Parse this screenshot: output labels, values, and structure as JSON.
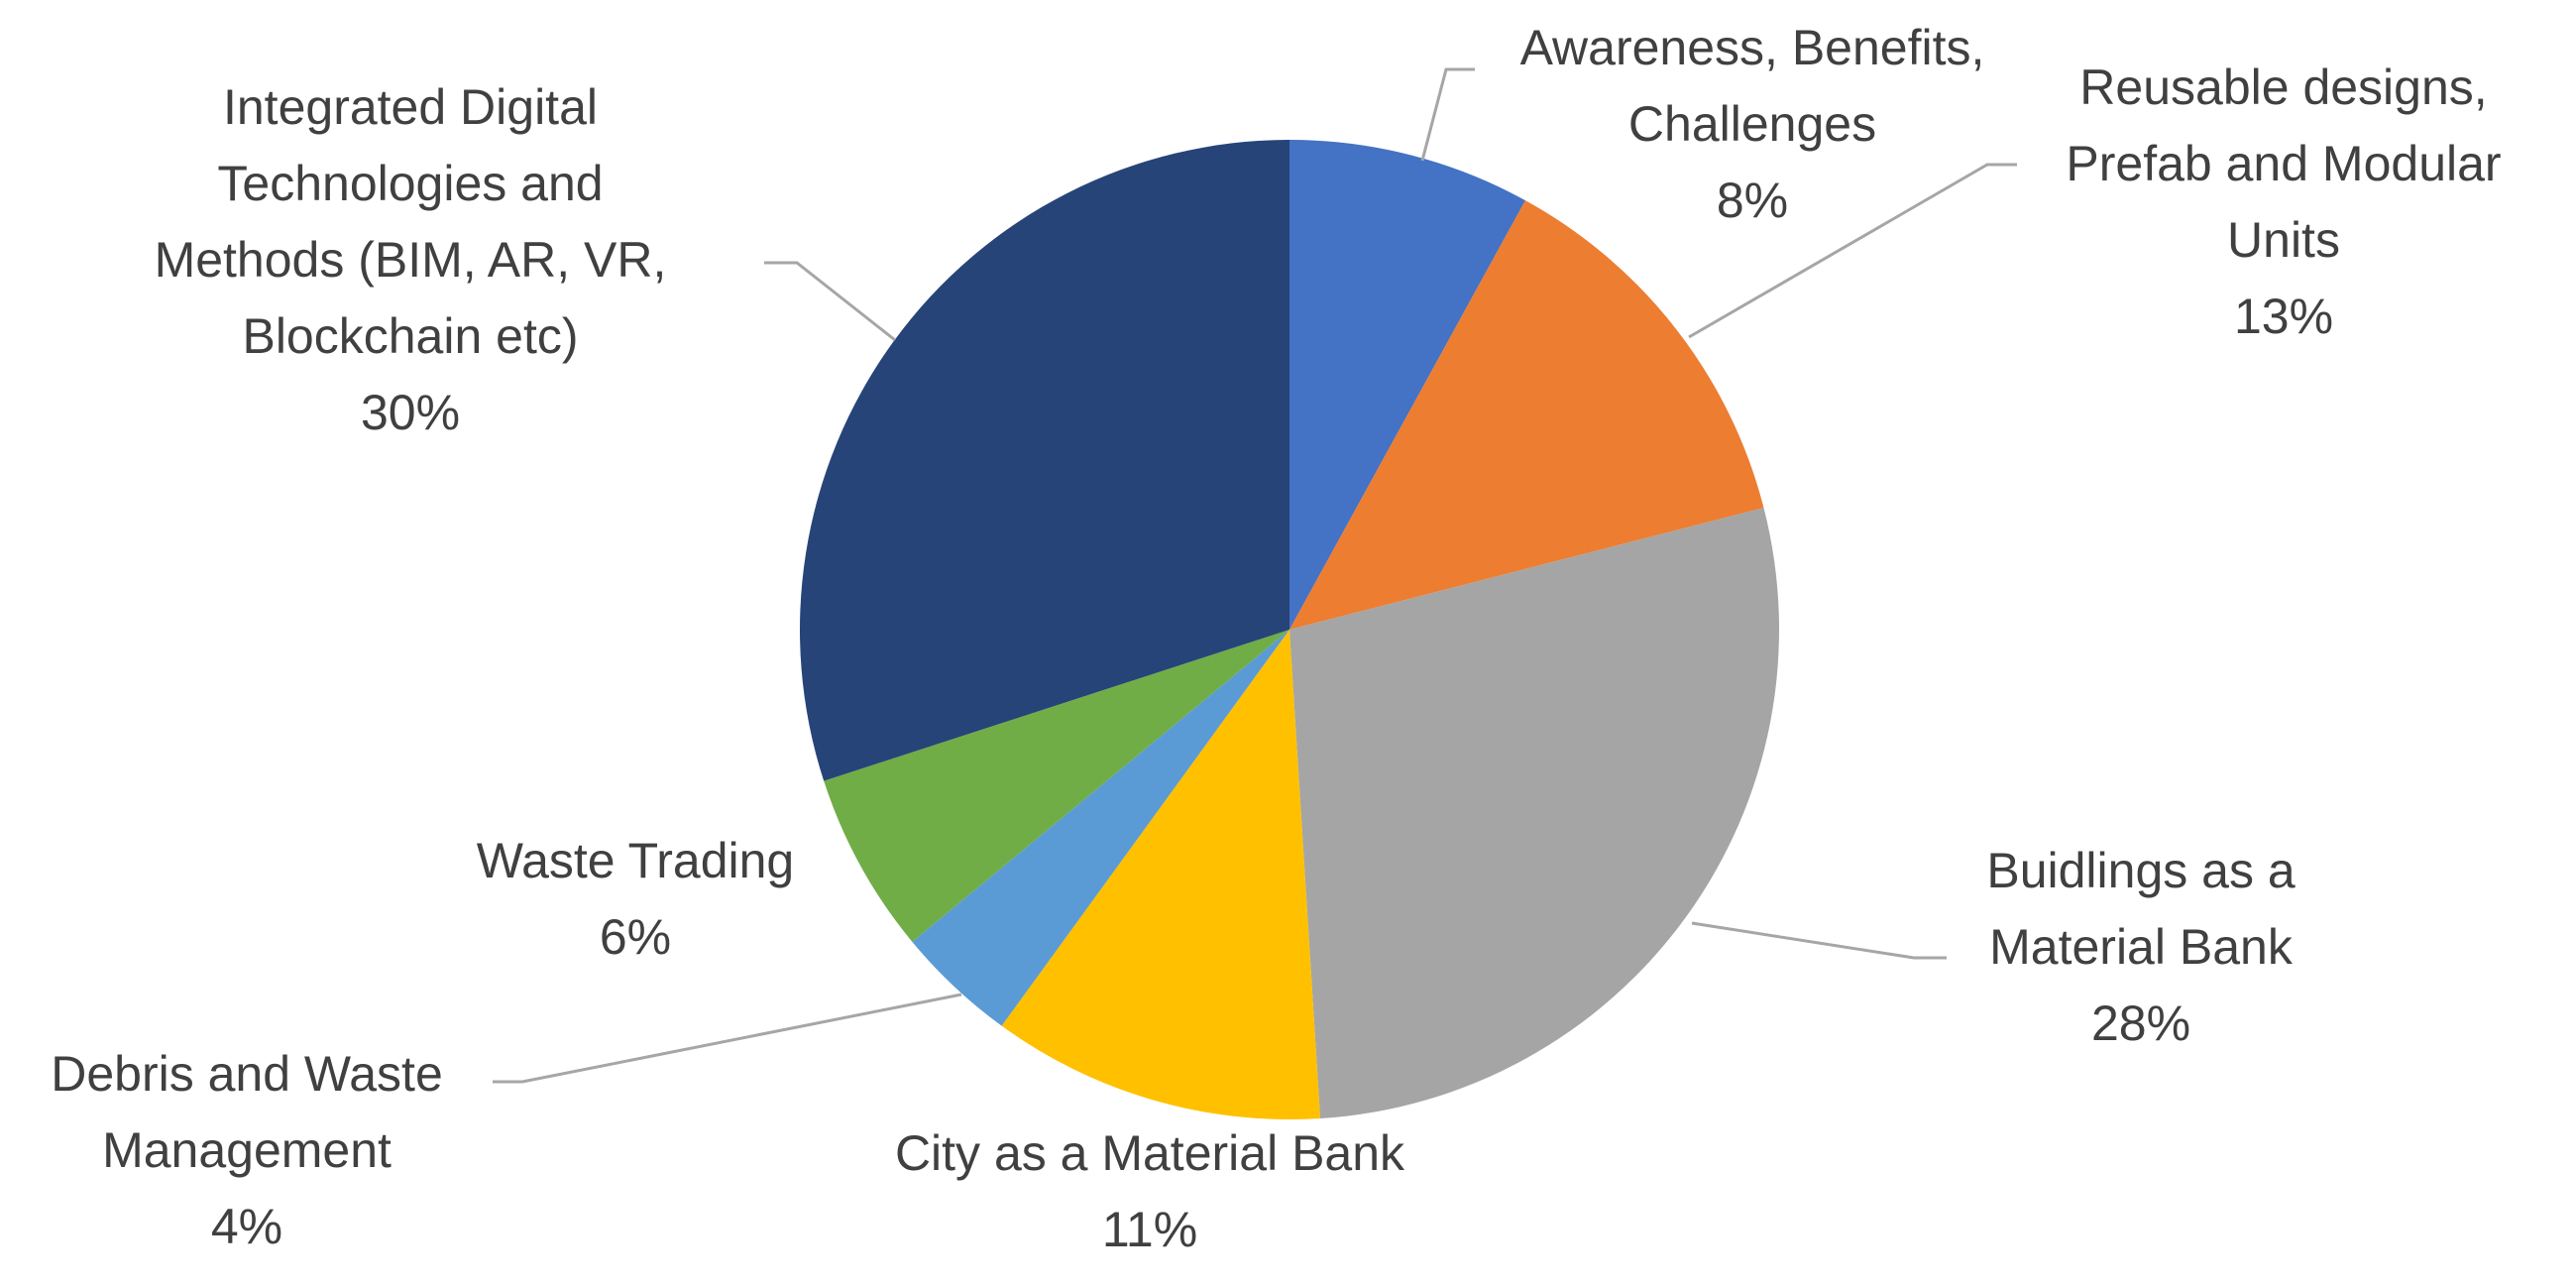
{
  "chart_data": {
    "type": "pie",
    "categories": [
      "Awareness, Benefits, Challenges",
      "Reusable designs, Prefab and Modular Units",
      "Buidlings as a Material Bank",
      "City as a Material Bank",
      "Debris and Waste Management",
      "Waste Trading",
      "Integrated Digital Technologies and Methods (BIM, AR, VR, Blockchain etc)"
    ],
    "values": [
      8,
      13,
      28,
      11,
      4,
      6,
      30
    ],
    "value_labels": [
      "8%",
      "13%",
      "28%",
      "11%",
      "4%",
      "6%",
      "30%"
    ],
    "colors": [
      "#4472c4",
      "#ed7d31",
      "#a5a5a5",
      "#ffc000",
      "#5b9bd5",
      "#70ad47",
      "#264478"
    ]
  }
}
